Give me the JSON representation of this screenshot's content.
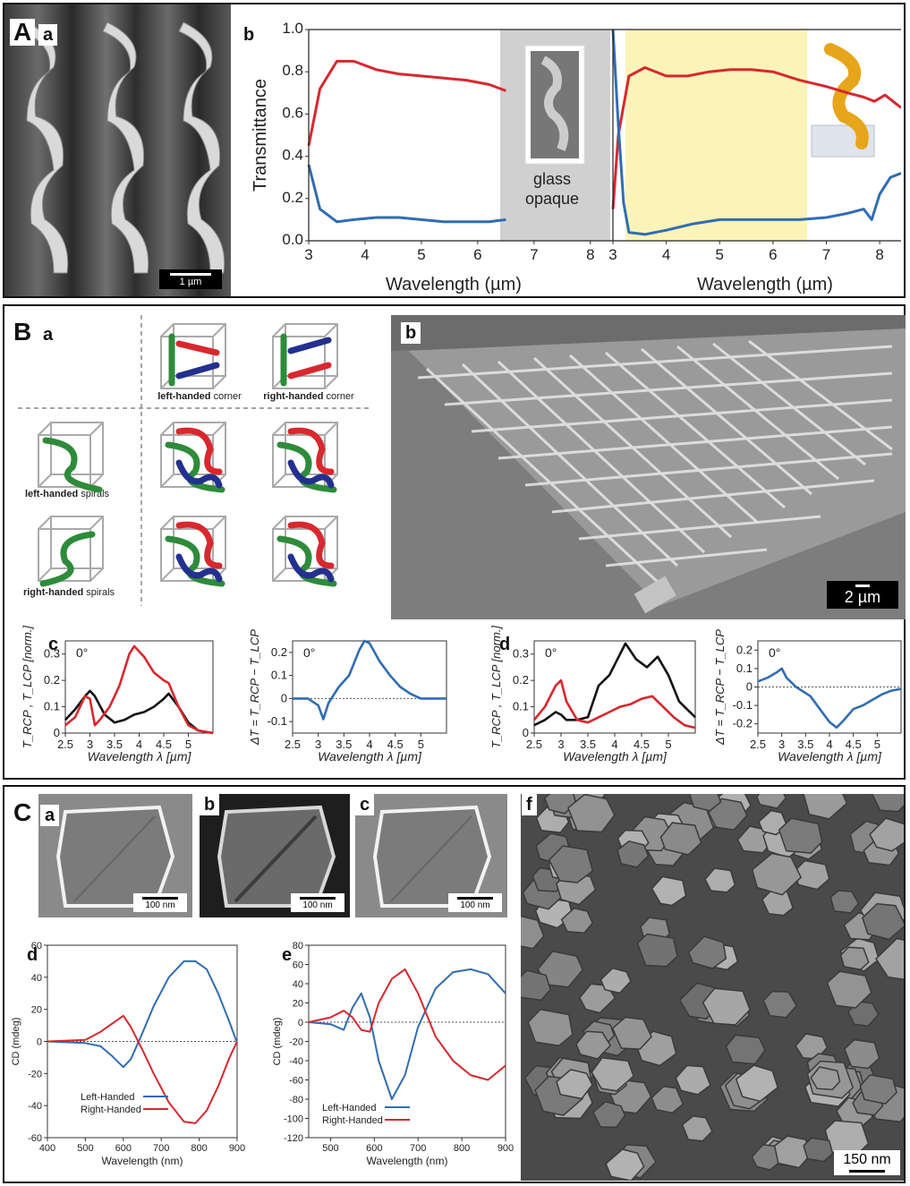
{
  "panelA": {
    "label": "A",
    "a": {
      "label": "a",
      "scale": "1 µm"
    },
    "b": {
      "label": "b",
      "ylabel": "Transmittance",
      "xlabel": "Wavelength (µm)",
      "glass_note_line1": "glass",
      "glass_note_line2": "opaque",
      "left_xticks": [
        "3",
        "4",
        "5",
        "6",
        "7",
        "8"
      ],
      "right_xticks": [
        "3",
        "4",
        "5",
        "6",
        "7",
        "8"
      ],
      "yticks": [
        "0.0",
        "0.2",
        "0.4",
        "0.6",
        "0.8",
        "1.0"
      ]
    }
  },
  "panelB": {
    "label": "B",
    "a": {
      "label": "a",
      "corner_left_bold": "left-handed",
      "corner_left_rest": " corner",
      "corner_right_bold": "right-handed",
      "corner_right_rest": " corner",
      "spiral_left_bold": "left-handed",
      "spiral_left_rest": " spirals",
      "spiral_right_bold": "right-handed",
      "spiral_right_rest": " spirals"
    },
    "b": {
      "label": "b",
      "scale": "2 µm"
    },
    "c": {
      "label": "c"
    },
    "d": {
      "label": "d"
    },
    "angle": "0°",
    "xlabel": "Wavelength λ [µm]",
    "ylabel_T": "T_RCP , T_LCP [norm.]",
    "ylabel_dT": "ΔT = T_RCP − T_LCP"
  },
  "panelC": {
    "label": "C",
    "sem_labels": [
      "a",
      "b",
      "c"
    ],
    "sem_scale": "100 nm",
    "d": {
      "label": "d"
    },
    "e": {
      "label": "e"
    },
    "f": {
      "label": "f",
      "scale": "150 nm"
    },
    "ylabel": "CD (mdeg)",
    "xlabel": "Wavelength (nm)",
    "legend_left": "Left-Handed",
    "legend_right": "Right-Handed"
  },
  "colors": {
    "red": "#d9272e",
    "blue": "#2f6db3",
    "yellow": "#fbf4b8",
    "green": "#2e8b3a",
    "navy": "#23308f"
  },
  "chart_data": [
    {
      "type": "line",
      "title": "",
      "xlabel": "Wavelength (µm)",
      "ylabel": "Transmittance",
      "xlim": [
        3,
        8.4
      ],
      "ylim": [
        0,
        1
      ],
      "series": [
        {
          "x": [
            3.0,
            3.2,
            3.5,
            3.8,
            4.2,
            4.6,
            5.0,
            5.4,
            5.8,
            6.2,
            6.5
          ],
          "values": [
            0.45,
            0.72,
            0.85,
            0.85,
            0.81,
            0.79,
            0.78,
            0.77,
            0.76,
            0.74,
            0.71
          ]
        },
        {
          "x": [
            3.0,
            3.2,
            3.5,
            3.8,
            4.2,
            4.6,
            5.0,
            5.4,
            5.8,
            6.2,
            6.5
          ],
          "values": [
            0.36,
            0.15,
            0.09,
            0.1,
            0.11,
            0.11,
            0.1,
            0.09,
            0.09,
            0.09,
            0.1
          ]
        }
      ]
    },
    {
      "type": "line",
      "title": "",
      "xlabel": "Wavelength (µm)",
      "ylabel": "Transmittance",
      "xlim": [
        3,
        8.4
      ],
      "ylim": [
        0,
        1
      ],
      "series": [
        {
          "x": [
            3.0,
            3.1,
            3.3,
            3.6,
            4.0,
            4.4,
            4.8,
            5.2,
            5.6,
            6.0,
            6.5,
            7.0,
            7.4,
            7.7,
            7.9,
            8.1,
            8.4
          ],
          "values": [
            0.15,
            0.5,
            0.78,
            0.82,
            0.78,
            0.78,
            0.8,
            0.81,
            0.81,
            0.8,
            0.76,
            0.73,
            0.7,
            0.68,
            0.66,
            0.69,
            0.63
          ]
        },
        {
          "x": [
            3.0,
            3.1,
            3.2,
            3.3,
            3.6,
            4.0,
            4.5,
            5.0,
            5.5,
            6.0,
            6.5,
            7.0,
            7.4,
            7.7,
            7.85,
            8.0,
            8.2,
            8.4
          ],
          "values": [
            1.0,
            0.55,
            0.18,
            0.04,
            0.03,
            0.05,
            0.08,
            0.1,
            0.1,
            0.1,
            0.1,
            0.11,
            0.13,
            0.15,
            0.1,
            0.22,
            0.3,
            0.32
          ]
        }
      ]
    },
    {
      "type": "line",
      "title": "",
      "xlabel": "Wavelength λ [µm]",
      "ylabel": "T_RCP , T_LCP [norm.]",
      "xlim": [
        2.5,
        5.5
      ],
      "ylim": [
        0,
        0.35
      ],
      "series": [
        {
          "x": [
            2.5,
            2.7,
            2.9,
            3.0,
            3.1,
            3.3,
            3.5,
            3.7,
            3.9,
            4.1,
            4.3,
            4.5,
            4.6,
            4.8,
            5.0,
            5.2,
            5.5
          ],
          "values": [
            0.05,
            0.09,
            0.14,
            0.16,
            0.14,
            0.07,
            0.04,
            0.05,
            0.07,
            0.08,
            0.1,
            0.13,
            0.15,
            0.1,
            0.04,
            0.01,
            0.0
          ]
        },
        {
          "x": [
            2.5,
            2.7,
            2.9,
            3.0,
            3.1,
            3.2,
            3.4,
            3.6,
            3.8,
            3.9,
            4.1,
            4.3,
            4.5,
            4.6,
            4.8,
            5.0,
            5.2,
            5.5
          ],
          "values": [
            0.03,
            0.06,
            0.14,
            0.13,
            0.03,
            0.05,
            0.1,
            0.18,
            0.3,
            0.33,
            0.29,
            0.23,
            0.2,
            0.19,
            0.1,
            0.03,
            0.01,
            0.0
          ]
        }
      ]
    },
    {
      "type": "line",
      "title": "",
      "xlabel": "Wavelength λ [µm]",
      "ylabel": "ΔT = T_RCP − T_LCP",
      "xlim": [
        2.5,
        5.5
      ],
      "ylim": [
        -0.15,
        0.25
      ],
      "series": [
        {
          "x": [
            2.5,
            2.8,
            3.0,
            3.1,
            3.2,
            3.4,
            3.6,
            3.8,
            3.9,
            4.0,
            4.2,
            4.4,
            4.6,
            4.8,
            5.0,
            5.5
          ],
          "values": [
            0.0,
            0.0,
            -0.03,
            -0.09,
            -0.02,
            0.05,
            0.1,
            0.21,
            0.25,
            0.24,
            0.16,
            0.1,
            0.05,
            0.02,
            0.0,
            0.0
          ]
        }
      ]
    },
    {
      "type": "line",
      "title": "",
      "xlabel": "Wavelength λ [µm]",
      "ylabel": "T_RCP , T_LCP [norm.]",
      "xlim": [
        2.5,
        5.5
      ],
      "ylim": [
        0,
        0.35
      ],
      "series": [
        {
          "x": [
            2.5,
            2.7,
            2.9,
            3.0,
            3.1,
            3.3,
            3.5,
            3.7,
            3.9,
            4.1,
            4.2,
            4.4,
            4.6,
            4.8,
            5.0,
            5.2,
            5.5
          ],
          "values": [
            0.03,
            0.05,
            0.08,
            0.07,
            0.05,
            0.05,
            0.06,
            0.18,
            0.22,
            0.3,
            0.34,
            0.28,
            0.25,
            0.29,
            0.22,
            0.12,
            0.06
          ]
        },
        {
          "x": [
            2.5,
            2.7,
            2.9,
            3.0,
            3.1,
            3.3,
            3.5,
            3.7,
            3.9,
            4.1,
            4.3,
            4.5,
            4.7,
            4.9,
            5.1,
            5.3,
            5.5
          ],
          "values": [
            0.05,
            0.1,
            0.18,
            0.2,
            0.12,
            0.05,
            0.04,
            0.06,
            0.08,
            0.1,
            0.11,
            0.13,
            0.14,
            0.1,
            0.06,
            0.03,
            0.02
          ]
        }
      ]
    },
    {
      "type": "line",
      "title": "",
      "xlabel": "Wavelength λ [µm]",
      "ylabel": "ΔT = T_RCP − T_LCP",
      "xlim": [
        2.5,
        5.5
      ],
      "ylim": [
        -0.25,
        0.25
      ],
      "series": [
        {
          "x": [
            2.5,
            2.7,
            2.9,
            3.0,
            3.1,
            3.3,
            3.6,
            3.8,
            4.0,
            4.15,
            4.3,
            4.5,
            4.7,
            4.9,
            5.1,
            5.3,
            5.5
          ],
          "values": [
            0.03,
            0.05,
            0.08,
            0.1,
            0.05,
            0.0,
            -0.05,
            -0.12,
            -0.19,
            -0.22,
            -0.18,
            -0.12,
            -0.1,
            -0.07,
            -0.04,
            -0.02,
            -0.01
          ]
        }
      ]
    },
    {
      "type": "line",
      "title": "",
      "xlabel": "Wavelength (nm)",
      "ylabel": "CD (mdeg)",
      "xlim": [
        400,
        900
      ],
      "ylim": [
        -60,
        60
      ],
      "series": [
        {
          "name": "Left-Handed",
          "x": [
            400,
            450,
            500,
            540,
            570,
            600,
            620,
            650,
            680,
            720,
            760,
            790,
            820,
            850,
            880,
            900
          ],
          "values": [
            0,
            -0.5,
            -1,
            -3,
            -9,
            -16,
            -11,
            5,
            22,
            40,
            50,
            50,
            45,
            30,
            12,
            -1
          ]
        },
        {
          "name": "Right-Handed",
          "x": [
            400,
            450,
            500,
            540,
            570,
            600,
            620,
            650,
            680,
            720,
            760,
            790,
            820,
            850,
            880,
            900
          ],
          "values": [
            0,
            0.5,
            1,
            6,
            11,
            16,
            9,
            -5,
            -20,
            -38,
            -50,
            -51,
            -43,
            -28,
            -10,
            0
          ]
        }
      ]
    },
    {
      "type": "line",
      "title": "",
      "xlabel": "Wavelength (nm)",
      "ylabel": "CD (mdeg)",
      "xlim": [
        450,
        900
      ],
      "ylim": [
        -120,
        80
      ],
      "series": [
        {
          "name": "Left-Handed",
          "x": [
            450,
            500,
            530,
            550,
            570,
            590,
            610,
            640,
            670,
            700,
            740,
            780,
            820,
            860,
            900
          ],
          "values": [
            0,
            -2,
            -8,
            15,
            30,
            5,
            -40,
            -80,
            -55,
            -5,
            35,
            52,
            55,
            50,
            30
          ]
        },
        {
          "name": "Right-Handed",
          "x": [
            450,
            500,
            530,
            550,
            570,
            590,
            610,
            640,
            670,
            700,
            740,
            780,
            820,
            860,
            900
          ],
          "values": [
            0,
            5,
            12,
            5,
            -8,
            -10,
            20,
            45,
            55,
            30,
            -15,
            -40,
            -55,
            -60,
            -45
          ]
        }
      ]
    }
  ]
}
